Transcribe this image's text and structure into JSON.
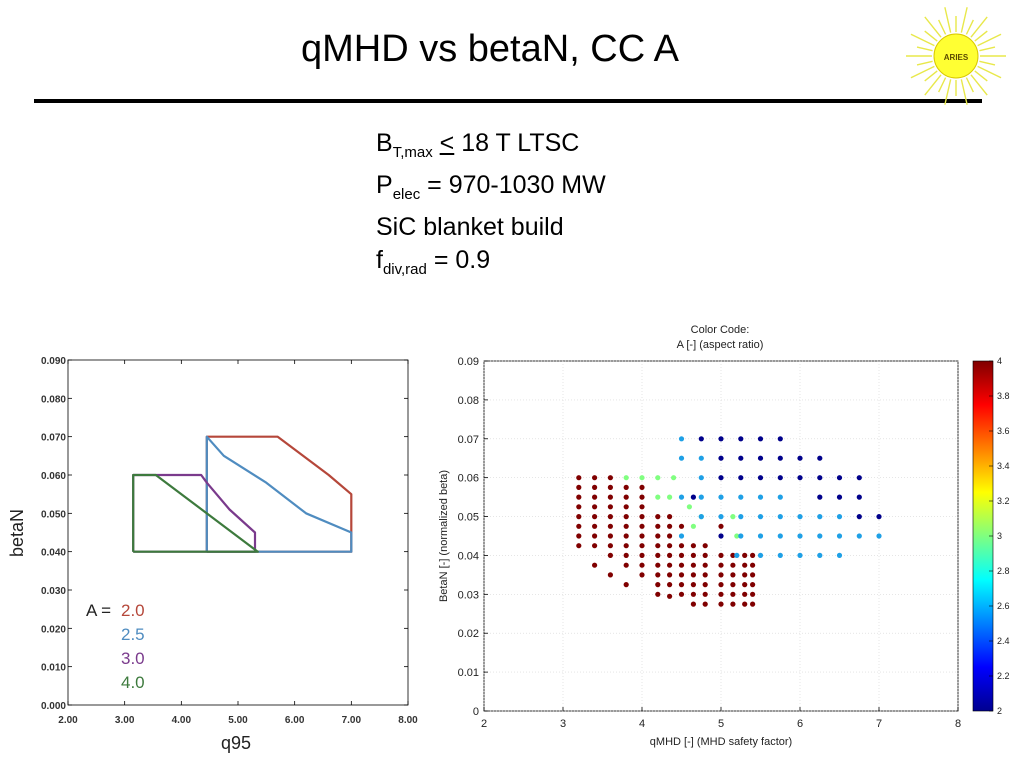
{
  "slide": {
    "title": "qMHD vs betaN, CC A",
    "logo_text": "ARIES",
    "params": {
      "line1": {
        "main": "B",
        "sub": "T,max",
        "op": "<",
        "rest": " 18 T LTSC"
      },
      "line2": {
        "main": "P",
        "sub": "elec",
        "rest": " = 970-1030 MW"
      },
      "line3": {
        "text": "SiC blanket build"
      },
      "line4": {
        "main": "f",
        "sub": "div,rad",
        "rest": " = 0.9"
      }
    }
  },
  "chart_data": [
    {
      "type": "line",
      "xlabel": "q95",
      "ylabel": "betaN",
      "xlim": [
        2.0,
        8.0
      ],
      "ylim": [
        0.0,
        0.09
      ],
      "xticks": [
        "2.00",
        "3.00",
        "4.00",
        "5.00",
        "6.00",
        "7.00",
        "8.00"
      ],
      "yticks": [
        "0.000",
        "0.010",
        "0.020",
        "0.030",
        "0.040",
        "0.050",
        "0.060",
        "0.070",
        "0.080",
        "0.090"
      ],
      "legend_prefix": "A =",
      "legend_placement": "bottom-left",
      "colors": {
        "2.0": "#b5473a",
        "2.5": "#4f8cc0",
        "3.0": "#7a3a8c",
        "4.0": "#3d7a3d"
      },
      "series": [
        {
          "name": "2.0",
          "x": [
            4.45,
            4.45,
            5.7,
            6.6,
            7.0,
            7.0,
            4.45
          ],
          "y": [
            0.04,
            0.07,
            0.07,
            0.06,
            0.055,
            0.04,
            0.04
          ]
        },
        {
          "name": "2.5",
          "x": [
            4.45,
            4.45,
            4.75,
            5.5,
            6.2,
            7.0,
            7.0,
            4.45
          ],
          "y": [
            0.04,
            0.07,
            0.065,
            0.058,
            0.05,
            0.045,
            0.04,
            0.04
          ]
        },
        {
          "name": "3.0",
          "x": [
            3.15,
            3.15,
            4.35,
            4.45,
            4.85,
            5.3,
            5.3,
            3.15
          ],
          "y": [
            0.04,
            0.06,
            0.06,
            0.058,
            0.051,
            0.045,
            0.04,
            0.04
          ]
        },
        {
          "name": "4.0",
          "x": [
            3.15,
            3.15,
            3.55,
            5.35,
            5.35,
            3.15
          ],
          "y": [
            0.04,
            0.06,
            0.06,
            0.04,
            0.04,
            0.04
          ]
        }
      ]
    },
    {
      "type": "scatter",
      "title": "Color Code:\nA [-] (aspect ratio)",
      "xlabel": "qMHD [-] (MHD safety factor)",
      "ylabel": "BetaN [-] (normalized beta)",
      "xlim": [
        2,
        8
      ],
      "ylim": [
        0,
        0.09
      ],
      "xticks": [
        "2",
        "3",
        "4",
        "5",
        "6",
        "7",
        "8"
      ],
      "yticks": [
        "0",
        "0.01",
        "0.02",
        "0.03",
        "0.04",
        "0.05",
        "0.06",
        "0.07",
        "0.08",
        "0.09"
      ],
      "colorbar": {
        "min": 2,
        "max": 4,
        "ticks": [
          "2",
          "2.2",
          "2.4",
          "2.6",
          "2.8",
          "3",
          "3.2",
          "3.4",
          "3.6",
          "3.8",
          "4"
        ]
      },
      "grid": true,
      "groups": [
        {
          "name": "4",
          "color": "#800000",
          "points": [
            [
              3.2,
              0.06
            ],
            [
              3.2,
              0.0575
            ],
            [
              3.2,
              0.055
            ],
            [
              3.2,
              0.0525
            ],
            [
              3.2,
              0.05
            ],
            [
              3.2,
              0.0475
            ],
            [
              3.2,
              0.045
            ],
            [
              3.2,
              0.0425
            ],
            [
              3.4,
              0.06
            ],
            [
              3.4,
              0.0575
            ],
            [
              3.4,
              0.055
            ],
            [
              3.4,
              0.0525
            ],
            [
              3.4,
              0.05
            ],
            [
              3.4,
              0.0475
            ],
            [
              3.4,
              0.045
            ],
            [
              3.4,
              0.0425
            ],
            [
              3.4,
              0.0375
            ],
            [
              3.6,
              0.06
            ],
            [
              3.6,
              0.0575
            ],
            [
              3.6,
              0.055
            ],
            [
              3.6,
              0.0525
            ],
            [
              3.6,
              0.05
            ],
            [
              3.6,
              0.0475
            ],
            [
              3.6,
              0.045
            ],
            [
              3.6,
              0.0425
            ],
            [
              3.6,
              0.04
            ],
            [
              3.6,
              0.035
            ],
            [
              3.8,
              0.0575
            ],
            [
              3.8,
              0.055
            ],
            [
              3.8,
              0.0525
            ],
            [
              3.8,
              0.05
            ],
            [
              3.8,
              0.0475
            ],
            [
              3.8,
              0.045
            ],
            [
              3.8,
              0.0425
            ],
            [
              3.8,
              0.04
            ],
            [
              3.8,
              0.0375
            ],
            [
              3.8,
              0.0325
            ],
            [
              4.0,
              0.0575
            ],
            [
              4.0,
              0.055
            ],
            [
              4.0,
              0.0525
            ],
            [
              4.0,
              0.05
            ],
            [
              4.0,
              0.0475
            ],
            [
              4.0,
              0.045
            ],
            [
              4.0,
              0.0425
            ],
            [
              4.0,
              0.04
            ],
            [
              4.0,
              0.0375
            ],
            [
              4.0,
              0.035
            ],
            [
              4.2,
              0.05
            ],
            [
              4.2,
              0.0475
            ],
            [
              4.2,
              0.045
            ],
            [
              4.2,
              0.0425
            ],
            [
              4.2,
              0.04
            ],
            [
              4.2,
              0.0375
            ],
            [
              4.2,
              0.035
            ],
            [
              4.2,
              0.0325
            ],
            [
              4.2,
              0.03
            ],
            [
              4.35,
              0.05
            ],
            [
              4.35,
              0.0475
            ],
            [
              4.35,
              0.045
            ],
            [
              4.35,
              0.0425
            ],
            [
              4.35,
              0.04
            ],
            [
              4.35,
              0.0375
            ],
            [
              4.35,
              0.035
            ],
            [
              4.35,
              0.0325
            ],
            [
              4.35,
              0.0295
            ],
            [
              4.5,
              0.0475
            ],
            [
              4.5,
              0.0425
            ],
            [
              4.5,
              0.04
            ],
            [
              4.5,
              0.0375
            ],
            [
              4.5,
              0.035
            ],
            [
              4.5,
              0.0325
            ],
            [
              4.5,
              0.03
            ],
            [
              4.65,
              0.0425
            ],
            [
              4.65,
              0.04
            ],
            [
              4.65,
              0.0375
            ],
            [
              4.65,
              0.035
            ],
            [
              4.65,
              0.0325
            ],
            [
              4.65,
              0.03
            ],
            [
              4.65,
              0.0275
            ],
            [
              4.8,
              0.0425
            ],
            [
              4.8,
              0.04
            ],
            [
              4.8,
              0.0375
            ],
            [
              4.8,
              0.035
            ],
            [
              4.8,
              0.0325
            ],
            [
              4.8,
              0.03
            ],
            [
              4.8,
              0.0275
            ],
            [
              5.0,
              0.0475
            ],
            [
              5.0,
              0.04
            ],
            [
              5.0,
              0.0375
            ],
            [
              5.0,
              0.035
            ],
            [
              5.0,
              0.0325
            ],
            [
              5.0,
              0.03
            ],
            [
              5.0,
              0.0275
            ],
            [
              5.15,
              0.04
            ],
            [
              5.15,
              0.0375
            ],
            [
              5.15,
              0.035
            ],
            [
              5.15,
              0.0325
            ],
            [
              5.15,
              0.03
            ],
            [
              5.15,
              0.0275
            ],
            [
              5.3,
              0.04
            ],
            [
              5.3,
              0.0375
            ],
            [
              5.3,
              0.035
            ],
            [
              5.3,
              0.0325
            ],
            [
              5.3,
              0.03
            ],
            [
              5.3,
              0.0275
            ],
            [
              5.4,
              0.04
            ],
            [
              5.4,
              0.0375
            ],
            [
              5.4,
              0.035
            ],
            [
              5.4,
              0.0325
            ],
            [
              5.4,
              0.03
            ],
            [
              5.4,
              0.0275
            ]
          ]
        },
        {
          "name": "3",
          "color": "#80ff80",
          "points": [
            [
              3.8,
              0.06
            ],
            [
              4.0,
              0.06
            ],
            [
              4.2,
              0.06
            ],
            [
              4.4,
              0.06
            ],
            [
              4.2,
              0.055
            ],
            [
              4.35,
              0.055
            ],
            [
              4.6,
              0.0525
            ],
            [
              4.75,
              0.05
            ],
            [
              4.65,
              0.0475
            ],
            [
              5.15,
              0.05
            ],
            [
              5.2,
              0.045
            ]
          ]
        },
        {
          "name": "2.6",
          "color": "#1ea0e6",
          "points": [
            [
              4.5,
              0.07
            ],
            [
              4.5,
              0.065
            ],
            [
              4.5,
              0.055
            ],
            [
              4.5,
              0.045
            ],
            [
              4.75,
              0.065
            ],
            [
              4.75,
              0.06
            ],
            [
              4.75,
              0.055
            ],
            [
              4.75,
              0.05
            ],
            [
              5.0,
              0.055
            ],
            [
              5.0,
              0.05
            ],
            [
              5.25,
              0.055
            ],
            [
              5.25,
              0.05
            ],
            [
              5.25,
              0.045
            ],
            [
              5.5,
              0.055
            ],
            [
              5.5,
              0.05
            ],
            [
              5.5,
              0.045
            ],
            [
              5.5,
              0.04
            ],
            [
              5.75,
              0.055
            ],
            [
              5.75,
              0.05
            ],
            [
              5.75,
              0.045
            ],
            [
              5.75,
              0.04
            ],
            [
              6.0,
              0.05
            ],
            [
              6.0,
              0.045
            ],
            [
              6.0,
              0.04
            ],
            [
              6.25,
              0.05
            ],
            [
              6.25,
              0.045
            ],
            [
              6.25,
              0.04
            ],
            [
              6.5,
              0.05
            ],
            [
              6.5,
              0.045
            ],
            [
              6.5,
              0.04
            ],
            [
              6.75,
              0.045
            ],
            [
              7.0,
              0.045
            ],
            [
              5.2,
              0.04
            ]
          ]
        },
        {
          "name": "2",
          "color": "#00008b",
          "points": [
            [
              4.75,
              0.07
            ],
            [
              5.0,
              0.07
            ],
            [
              5.25,
              0.07
            ],
            [
              5.5,
              0.07
            ],
            [
              5.75,
              0.07
            ],
            [
              5.0,
              0.065
            ],
            [
              5.25,
              0.065
            ],
            [
              5.5,
              0.065
            ],
            [
              5.75,
              0.065
            ],
            [
              6.0,
              0.065
            ],
            [
              6.25,
              0.065
            ],
            [
              5.0,
              0.06
            ],
            [
              5.25,
              0.06
            ],
            [
              5.5,
              0.06
            ],
            [
              5.75,
              0.06
            ],
            [
              6.0,
              0.06
            ],
            [
              6.25,
              0.06
            ],
            [
              6.5,
              0.06
            ],
            [
              6.75,
              0.06
            ],
            [
              4.65,
              0.055
            ],
            [
              6.25,
              0.055
            ],
            [
              6.5,
              0.055
            ],
            [
              6.75,
              0.055
            ],
            [
              6.75,
              0.05
            ],
            [
              7.0,
              0.05
            ],
            [
              5.0,
              0.045
            ]
          ]
        }
      ]
    }
  ]
}
